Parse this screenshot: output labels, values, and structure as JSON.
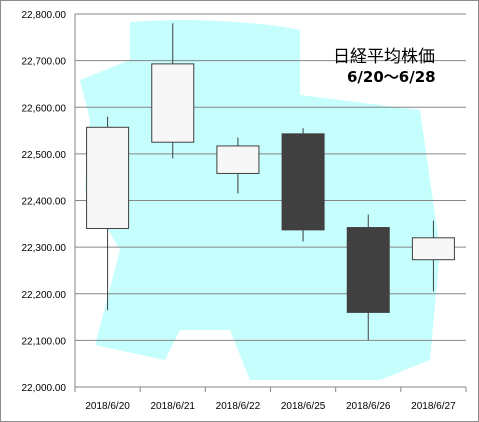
{
  "chart_data": {
    "type": "candlestick",
    "title": "日経平均株価",
    "subtitle": "6/20～6/28",
    "categories": [
      "2018/6/20",
      "2018/6/21",
      "2018/6/22",
      "2018/6/25",
      "2018/6/26",
      "2018/6/27"
    ],
    "open": [
      22340,
      22525,
      22458,
      22543,
      22342,
      22273
    ],
    "high": [
      22580,
      22780,
      22535,
      22555,
      22370,
      22357
    ],
    "low": [
      22165,
      22490,
      22415,
      22312,
      22100,
      22205
    ],
    "close": [
      22557,
      22693,
      22517,
      22337,
      22160,
      22320
    ],
    "y_ticks": [
      "22,000.00",
      "22,100.00",
      "22,200.00",
      "22,300.00",
      "22,400.00",
      "22,500.00",
      "22,600.00",
      "22,700.00",
      "22,800.00"
    ],
    "ylim": [
      22000,
      22800
    ],
    "grid": true,
    "legend": "none",
    "colors": {
      "up_fill": "#f7f7f7",
      "down_fill": "#404040",
      "outline": "#404040",
      "grid": "#868686",
      "background_shape": "#c6fdfd"
    }
  }
}
